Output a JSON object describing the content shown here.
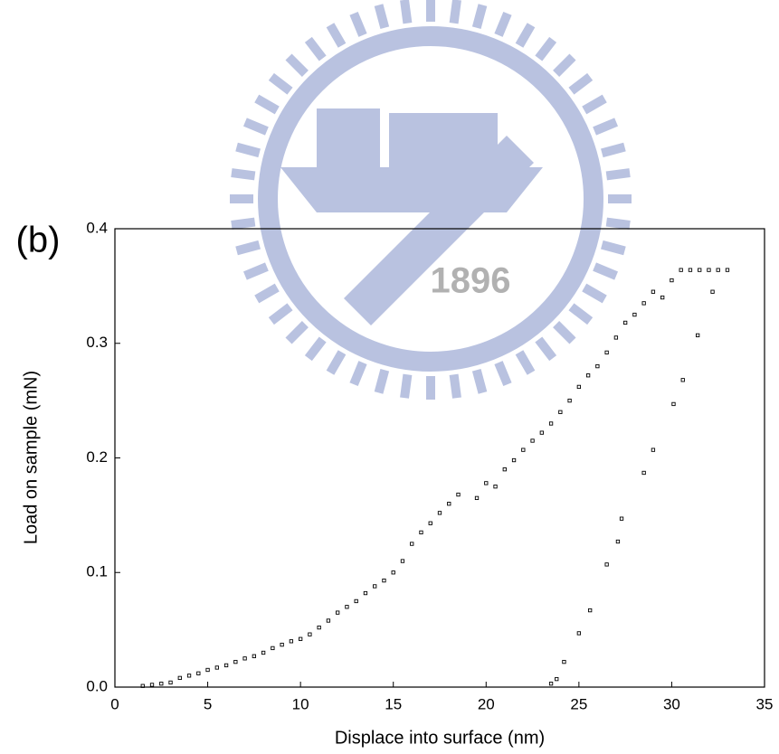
{
  "chart_data": {
    "type": "scatter",
    "panel_label": "(b)",
    "watermark_text": "1896",
    "xlabel": "Displace into surface (nm)",
    "ylabel": "Load on sample (mN)",
    "xlim": [
      0,
      35
    ],
    "xticks": [
      0,
      5,
      10,
      15,
      20,
      25,
      30,
      35
    ],
    "ylim": [
      0,
      0.4
    ],
    "yticks": [
      {
        "value": 0,
        "label": "0.0"
      },
      0.1,
      0.2,
      0.3,
      0.4
    ],
    "marker": "open-square",
    "color": "#000000",
    "x": [
      1.5,
      2.0,
      2.5,
      3.0,
      3.5,
      4.0,
      4.5,
      5.0,
      5.5,
      6.0,
      6.5,
      7.0,
      7.5,
      8.0,
      8.5,
      9.0,
      9.5,
      10.0,
      10.5,
      11.0,
      11.5,
      12.0,
      12.5,
      13.0,
      13.5,
      14.0,
      14.5,
      15.0,
      15.5,
      16.0,
      16.5,
      17.0,
      17.5,
      18.0,
      18.5,
      19.5,
      20.0,
      20.5,
      21.0,
      21.5,
      22.0,
      22.5,
      23.0,
      23.5,
      24.0,
      24.5,
      25.0,
      25.5,
      26.0,
      26.5,
      27.0,
      27.5,
      28.0,
      28.5,
      29.0,
      29.5,
      30.0,
      30.5,
      31.0,
      31.5,
      32.0,
      32.5,
      33.0,
      32.2,
      31.4,
      30.6,
      30.1,
      29.0,
      28.5,
      27.3,
      27.1,
      26.5,
      25.6,
      25.0,
      24.2,
      23.8,
      23.5
    ],
    "y": [
      0.001,
      0.002,
      0.003,
      0.004,
      0.008,
      0.01,
      0.012,
      0.015,
      0.017,
      0.019,
      0.022,
      0.025,
      0.027,
      0.03,
      0.034,
      0.037,
      0.04,
      0.042,
      0.046,
      0.052,
      0.058,
      0.065,
      0.07,
      0.075,
      0.082,
      0.088,
      0.093,
      0.1,
      0.11,
      0.125,
      0.135,
      0.143,
      0.152,
      0.16,
      0.168,
      0.165,
      0.178,
      0.175,
      0.19,
      0.198,
      0.207,
      0.215,
      0.222,
      0.23,
      0.24,
      0.25,
      0.262,
      0.272,
      0.28,
      0.292,
      0.305,
      0.318,
      0.325,
      0.335,
      0.345,
      0.34,
      0.355,
      0.364,
      0.364,
      0.364,
      0.364,
      0.364,
      0.364,
      0.345,
      0.307,
      0.268,
      0.247,
      0.207,
      0.187,
      0.147,
      0.127,
      0.107,
      0.067,
      0.047,
      0.022,
      0.007,
      0.003
    ]
  }
}
